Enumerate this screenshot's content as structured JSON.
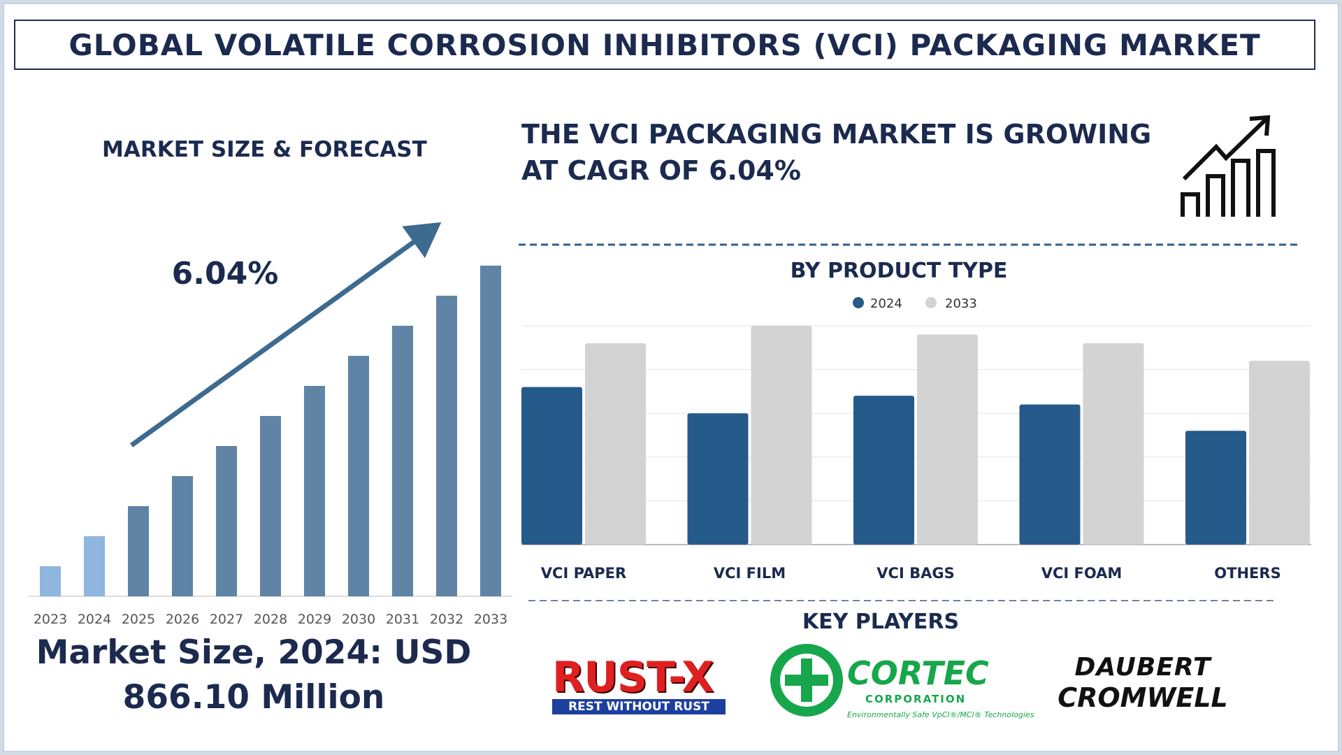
{
  "title": "GLOBAL VOLATILE CORROSION INHIBITORS (VCI) PACKAGING MARKET",
  "left_panel": {
    "heading": "MARKET SIZE & FORECAST",
    "cagr_label": "6.04%",
    "market_size_line1": "Market Size, 2024: USD",
    "market_size_line2": "866.10 Million"
  },
  "right_panel": {
    "headline_line1": "THE VCI PACKAGING MARKET IS GROWING",
    "headline_line2": "AT CAGR OF 6.04%",
    "growth_icon": "growth-chart-icon",
    "product_heading": "BY PRODUCT TYPE",
    "key_players_heading": "KEY PLAYERS"
  },
  "key_players": {
    "rustx": {
      "name": "RUST-X",
      "tagline": "REST WITHOUT RUST"
    },
    "cortec": {
      "name": "CORTEC",
      "sub": "CORPORATION",
      "tagline": "Environmentally Safe VpCI®/MCI® Technologies"
    },
    "daubert": {
      "line1": "DAUBERT",
      "line2": "CROMWELL"
    }
  },
  "colors": {
    "navy": "#1b2a4e",
    "bar_2024": "#255a8a",
    "bar_2033": "#d3d3d3",
    "forecast_bar": "#5f84a6",
    "history_bar": "#8fb6de",
    "arrow": "#3d6a8f"
  },
  "chart_data": [
    {
      "type": "bar",
      "title": "MARKET SIZE & FORECAST",
      "categories": [
        "2023",
        "2024",
        "2025",
        "2026",
        "2027",
        "2028",
        "2029",
        "2030",
        "2031",
        "2032",
        "2033"
      ],
      "values": [
        1,
        2,
        3,
        4,
        5,
        6,
        7,
        8,
        9,
        10,
        11
      ],
      "annotation": "6.04%",
      "grid": false,
      "legend": "none"
    },
    {
      "type": "bar",
      "title": "BY PRODUCT TYPE",
      "categories": [
        "VCI PAPER",
        "VCI FILM",
        "VCI BAGS",
        "VCI FOAM",
        "OTHERS"
      ],
      "series": [
        {
          "name": "2024",
          "values": [
            3.6,
            3.0,
            3.4,
            3.2,
            2.6
          ]
        },
        {
          "name": "2033",
          "values": [
            4.6,
            5.0,
            4.8,
            4.6,
            4.2
          ]
        }
      ],
      "ylim": [
        0,
        5
      ],
      "grid": true,
      "legend": "top-center"
    }
  ]
}
